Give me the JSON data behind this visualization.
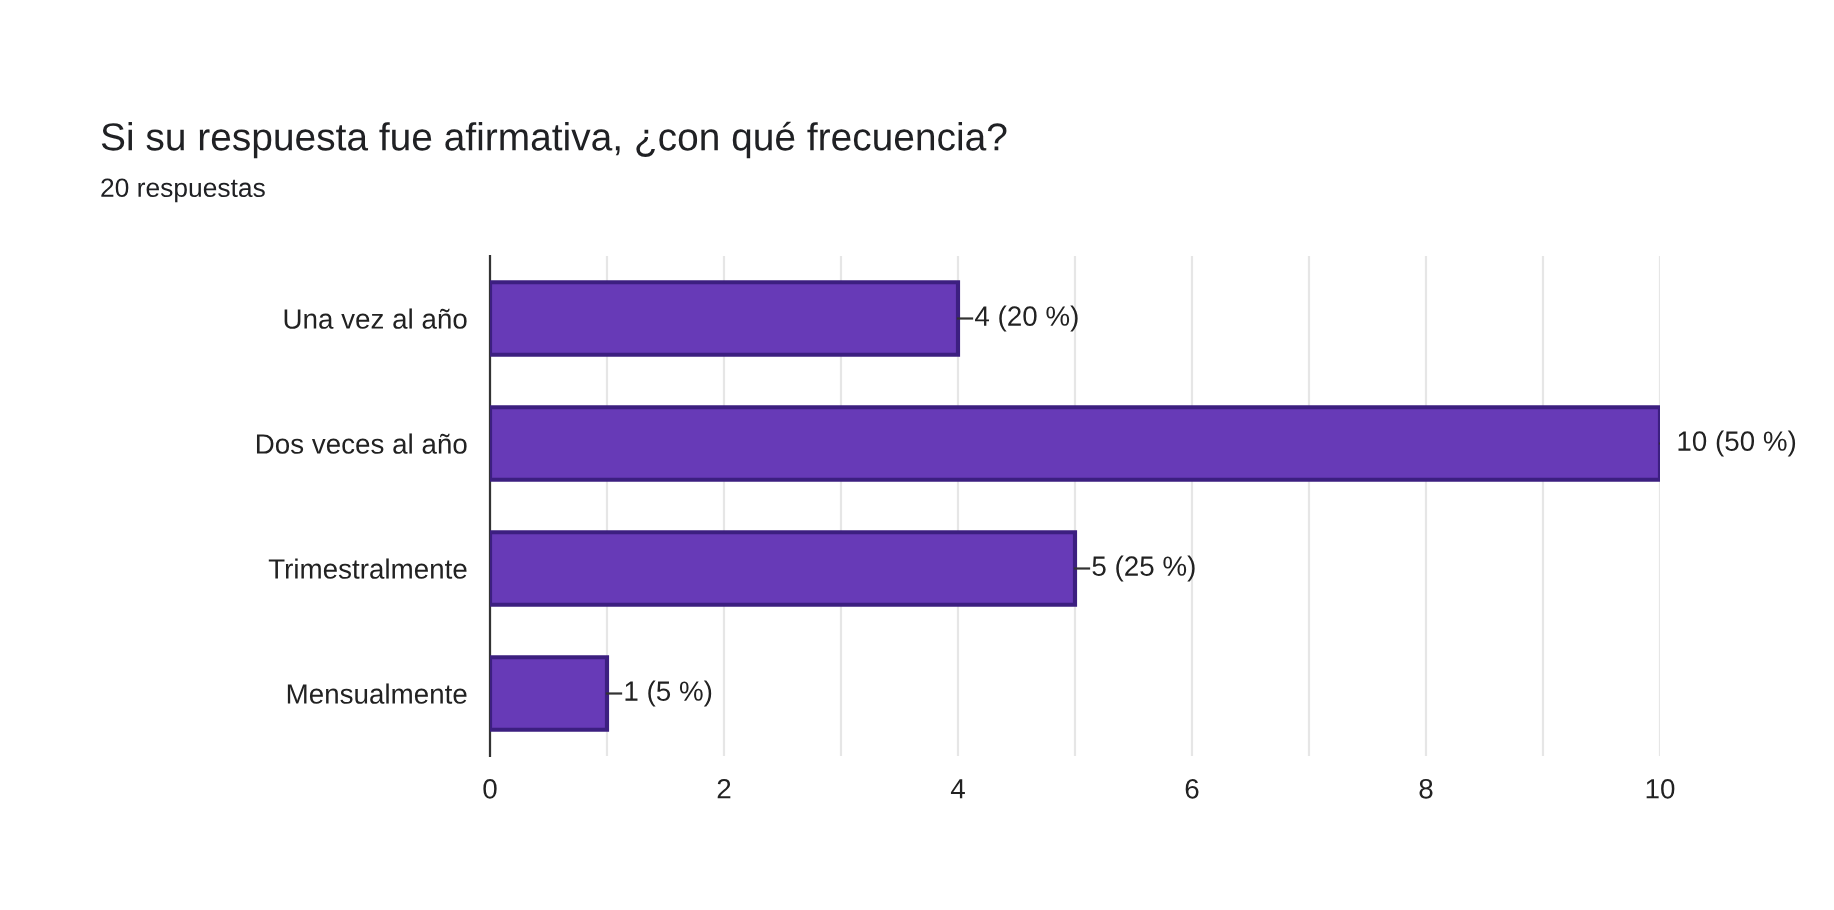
{
  "chart_data": {
    "type": "bar",
    "orientation": "horizontal",
    "title": "Si su respuesta fue afirmativa, ¿con qué frecuencia?",
    "subtitle": "20 respuestas",
    "categories": [
      "Una vez al año",
      "Dos veces al año",
      "Trimestralmente",
      "Mensualmente"
    ],
    "values": [
      4,
      10,
      5,
      1
    ],
    "value_labels": [
      "4 (20 %)",
      "10 (50 %)",
      "5 (25 %)",
      "1 (5 %)"
    ],
    "color": "#673ab7",
    "xlim": [
      0,
      10
    ],
    "xticks": [
      0,
      {
        "value": 1,
        "label": null
      },
      2,
      {
        "value": 3,
        "label": null
      },
      4,
      {
        "value": 5,
        "label": null
      },
      6,
      {
        "value": 7,
        "label": null
      },
      8,
      {
        "value": 9,
        "label": null
      },
      10
    ],
    "grid": "x"
  }
}
